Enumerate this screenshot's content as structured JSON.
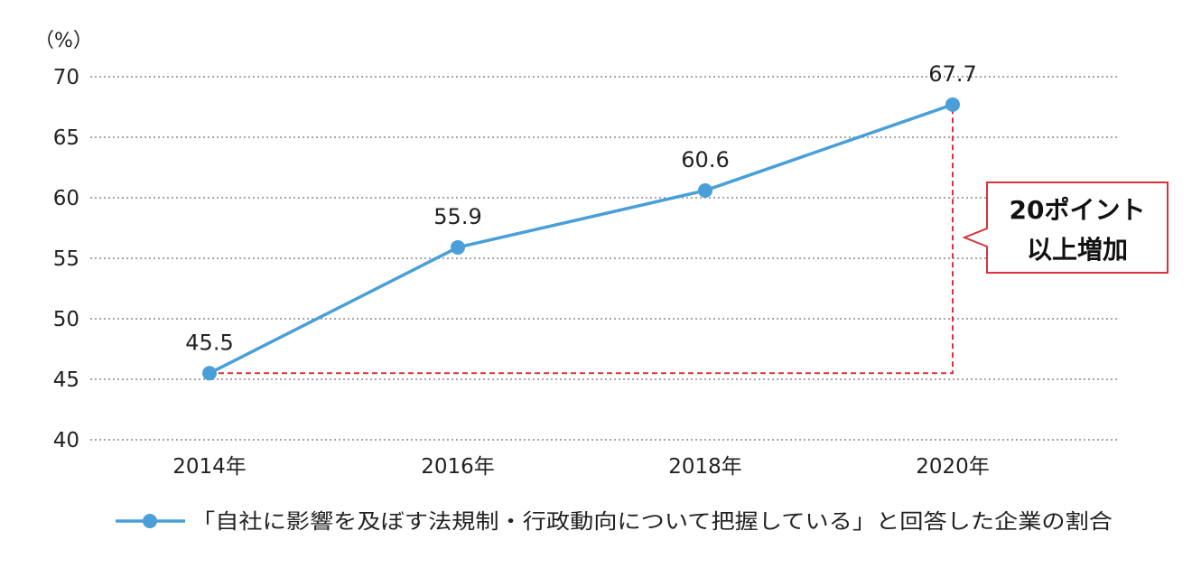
{
  "chart_data": {
    "type": "line",
    "unit_label": "（%）",
    "categories": [
      "2014年",
      "2016年",
      "2018年",
      "2020年"
    ],
    "series": [
      {
        "name": "「自社に影響を及ぼす法規制・行政動向について把握している」と回答した企業の割合",
        "values": [
          45.5,
          55.9,
          60.6,
          67.7
        ],
        "data_labels": [
          "45.5",
          "55.9",
          "60.6",
          "67.7"
        ]
      }
    ],
    "ylim": [
      40,
      70
    ],
    "yticks": [
      "70",
      "65",
      "60",
      "55",
      "50",
      "45",
      "40"
    ],
    "grid": true,
    "legend": "bottom",
    "annotation": {
      "lines": [
        "20ポイント",
        "以上増加"
      ],
      "from_value": 45.5,
      "to_value": 67.7
    },
    "colors": {
      "series": "#4a9fd8",
      "annotation": "#d9323a",
      "grid": "#888888"
    }
  }
}
